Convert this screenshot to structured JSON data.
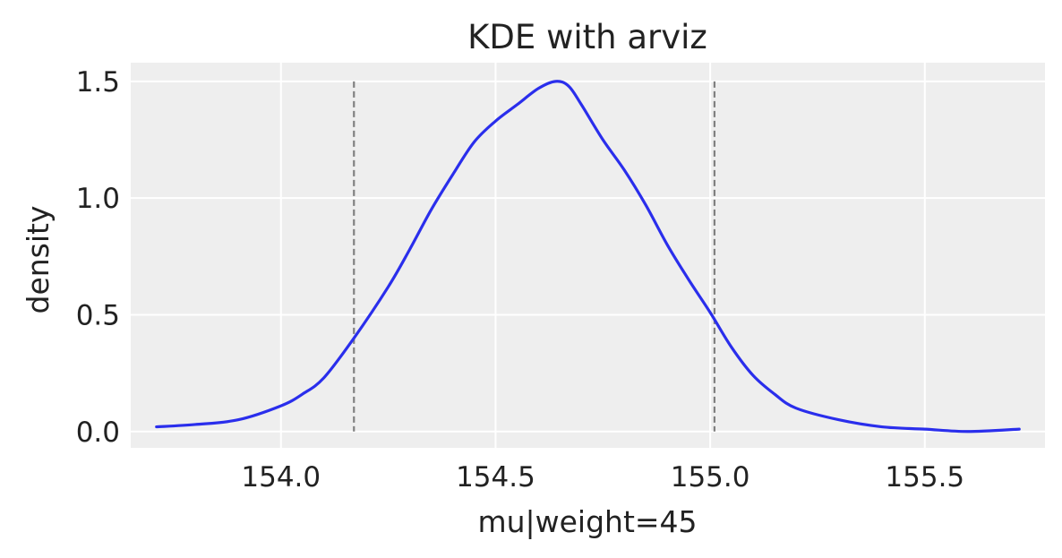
{
  "chart_data": {
    "type": "line",
    "title": "KDE with arviz",
    "xlabel": "mu|weight=45",
    "ylabel": "density",
    "xlim": [
      153.65,
      155.78
    ],
    "ylim": [
      -0.07,
      1.58
    ],
    "grid": true,
    "x_ticks": [
      154.0,
      154.5,
      155.0,
      155.5
    ],
    "x_tick_labels": [
      "154.0",
      "154.5",
      "155.0",
      "155.5"
    ],
    "y_ticks": [
      0.0,
      0.5,
      1.0,
      1.5
    ],
    "y_tick_labels": [
      "0.0",
      "0.5",
      "1.0",
      "1.5"
    ],
    "series": [
      {
        "color": "#2a2eec",
        "x": [
          153.71,
          153.8,
          153.9,
          154.0,
          154.05,
          154.1,
          154.17,
          154.25,
          154.3,
          154.35,
          154.4,
          154.45,
          154.5,
          154.55,
          154.6,
          154.64,
          154.67,
          154.7,
          154.75,
          154.8,
          154.85,
          154.9,
          154.95,
          155.0,
          155.05,
          155.1,
          155.15,
          155.2,
          155.3,
          155.4,
          155.5,
          155.6,
          155.72
        ],
        "y": [
          0.02,
          0.03,
          0.05,
          0.11,
          0.16,
          0.23,
          0.4,
          0.62,
          0.78,
          0.95,
          1.1,
          1.24,
          1.33,
          1.4,
          1.47,
          1.5,
          1.48,
          1.4,
          1.25,
          1.12,
          0.97,
          0.8,
          0.65,
          0.51,
          0.36,
          0.24,
          0.16,
          0.1,
          0.05,
          0.02,
          0.01,
          0.0,
          0.01
        ]
      }
    ],
    "vlines": {
      "x": [
        154.17,
        155.01
      ],
      "color": "#808080",
      "style": "dashed"
    },
    "colors": {
      "plot_background": "#eeeeee",
      "grid": "#ffffff",
      "text": "#222222"
    }
  }
}
